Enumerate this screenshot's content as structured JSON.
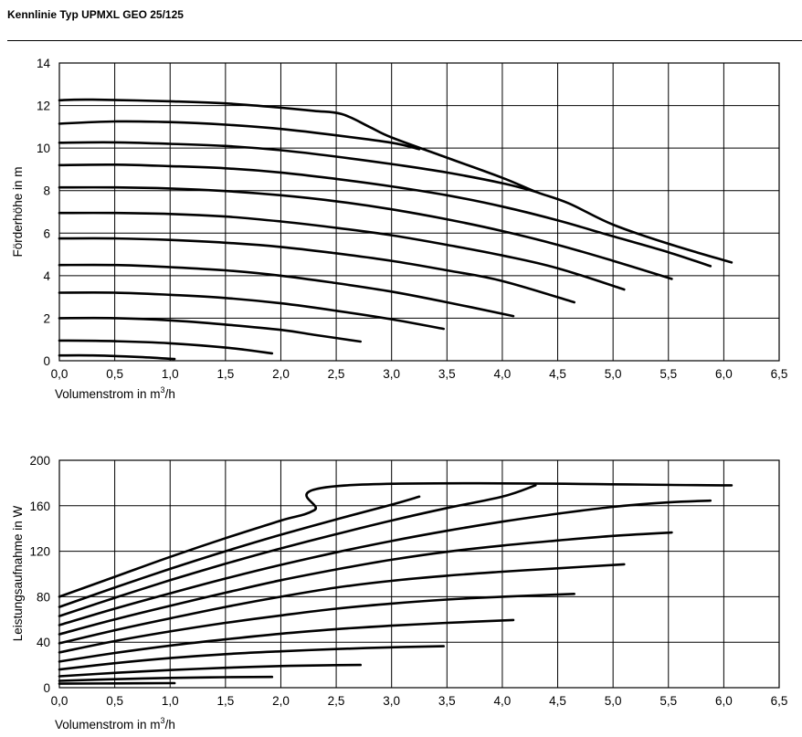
{
  "header": {
    "title": "Kennlinie Typ UPMXL GEO 25/125"
  },
  "chart_data": [
    {
      "type": "line",
      "title": "",
      "xlabel": "Volumenstrom in m³/h",
      "ylabel": "Förderhöhe in m",
      "xlim": [
        0,
        6.5
      ],
      "ylim": [
        0,
        14
      ],
      "xticks": [
        "0,0",
        "0,5",
        "1,0",
        "1,5",
        "2,0",
        "2,5",
        "3,0",
        "3,5",
        "4,0",
        "4,5",
        "5,0",
        "5,5",
        "6,0",
        "6,5"
      ],
      "yticks": [
        "0",
        "2",
        "4",
        "6",
        "8",
        "10",
        "12",
        "14"
      ],
      "grid": true,
      "series": [
        {
          "points": [
            [
              0,
              0.25
            ],
            [
              0.3,
              0.25
            ],
            [
              0.7,
              0.18
            ],
            [
              1.04,
              0.08
            ]
          ]
        },
        {
          "points": [
            [
              0,
              0.95
            ],
            [
              0.5,
              0.92
            ],
            [
              1.0,
              0.82
            ],
            [
              1.5,
              0.62
            ],
            [
              1.92,
              0.35
            ]
          ]
        },
        {
          "points": [
            [
              0,
              2.0
            ],
            [
              0.5,
              2.0
            ],
            [
              1.0,
              1.9
            ],
            [
              1.5,
              1.7
            ],
            [
              2.0,
              1.45
            ],
            [
              2.3,
              1.22
            ],
            [
              2.72,
              0.9
            ]
          ]
        },
        {
          "points": [
            [
              0,
              3.2
            ],
            [
              0.5,
              3.2
            ],
            [
              1.0,
              3.1
            ],
            [
              1.5,
              2.95
            ],
            [
              2.0,
              2.7
            ],
            [
              2.5,
              2.35
            ],
            [
              3.0,
              1.95
            ],
            [
              3.47,
              1.5
            ]
          ]
        },
        {
          "points": [
            [
              0,
              4.5
            ],
            [
              0.5,
              4.5
            ],
            [
              1.0,
              4.4
            ],
            [
              1.5,
              4.25
            ],
            [
              2.0,
              4.0
            ],
            [
              2.5,
              3.65
            ],
            [
              3.0,
              3.25
            ],
            [
              3.5,
              2.75
            ],
            [
              4.1,
              2.1
            ]
          ]
        },
        {
          "points": [
            [
              0,
              5.75
            ],
            [
              0.5,
              5.75
            ],
            [
              1.0,
              5.68
            ],
            [
              1.5,
              5.55
            ],
            [
              2.0,
              5.35
            ],
            [
              2.5,
              5.05
            ],
            [
              3.0,
              4.7
            ],
            [
              3.5,
              4.25
            ],
            [
              4.0,
              3.75
            ],
            [
              4.65,
              2.75
            ]
          ]
        },
        {
          "points": [
            [
              0,
              6.95
            ],
            [
              0.5,
              6.95
            ],
            [
              1.0,
              6.9
            ],
            [
              1.5,
              6.78
            ],
            [
              2.0,
              6.55
            ],
            [
              2.5,
              6.25
            ],
            [
              3.0,
              5.9
            ],
            [
              3.5,
              5.45
            ],
            [
              4.0,
              4.95
            ],
            [
              4.5,
              4.35
            ],
            [
              5.1,
              3.35
            ]
          ]
        },
        {
          "points": [
            [
              0,
              8.15
            ],
            [
              0.5,
              8.15
            ],
            [
              1.0,
              8.1
            ],
            [
              1.5,
              7.98
            ],
            [
              2.0,
              7.78
            ],
            [
              2.5,
              7.5
            ],
            [
              3.0,
              7.12
            ],
            [
              3.5,
              6.65
            ],
            [
              4.0,
              6.1
            ],
            [
              4.5,
              5.45
            ],
            [
              5.0,
              4.7
            ],
            [
              5.53,
              3.85
            ]
          ]
        },
        {
          "points": [
            [
              0,
              9.2
            ],
            [
              0.5,
              9.22
            ],
            [
              1.0,
              9.15
            ],
            [
              1.5,
              9.05
            ],
            [
              2.0,
              8.85
            ],
            [
              2.5,
              8.55
            ],
            [
              3.0,
              8.2
            ],
            [
              3.5,
              7.78
            ],
            [
              4.0,
              7.25
            ],
            [
              4.5,
              6.6
            ],
            [
              5.0,
              5.85
            ],
            [
              5.5,
              5.1
            ],
            [
              5.88,
              4.45
            ]
          ]
        },
        {
          "points": [
            [
              0,
              10.25
            ],
            [
              0.5,
              10.27
            ],
            [
              1.0,
              10.2
            ],
            [
              1.5,
              10.1
            ],
            [
              2.0,
              9.9
            ],
            [
              2.5,
              9.6
            ],
            [
              3.0,
              9.25
            ],
            [
              3.5,
              8.85
            ],
            [
              4.0,
              8.35
            ],
            [
              4.3,
              7.95
            ]
          ]
        },
        {
          "points": [
            [
              0,
              11.15
            ],
            [
              0.5,
              11.25
            ],
            [
              1.0,
              11.22
            ],
            [
              1.5,
              11.1
            ],
            [
              2.0,
              10.9
            ],
            [
              2.5,
              10.6
            ],
            [
              3.0,
              10.25
            ],
            [
              3.25,
              9.95
            ]
          ]
        },
        {
          "points": [
            [
              0,
              12.25
            ],
            [
              0.3,
              12.28
            ],
            [
              1.0,
              12.2
            ],
            [
              1.5,
              12.1
            ],
            [
              2.0,
              11.9
            ],
            [
              2.3,
              11.75
            ],
            [
              2.55,
              11.6
            ],
            [
              2.8,
              11.0
            ],
            [
              3.0,
              10.5
            ],
            [
              3.5,
              9.55
            ],
            [
              4.0,
              8.6
            ],
            [
              4.3,
              7.95
            ],
            [
              4.6,
              7.4
            ],
            [
              5.0,
              6.4
            ],
            [
              5.5,
              5.5
            ],
            [
              6.07,
              4.62
            ]
          ]
        }
      ]
    },
    {
      "type": "line",
      "title": "",
      "xlabel": "Volumenstrom in m³/h",
      "ylabel": "Leistungsaufnahme in W",
      "xlim": [
        0,
        6.5
      ],
      "ylim": [
        0,
        200
      ],
      "xticks": [
        "0,0",
        "0,5",
        "1,0",
        "1,5",
        "2,0",
        "2,5",
        "3,0",
        "3,5",
        "4,0",
        "4,5",
        "5,0",
        "5,5",
        "6,0",
        "6,5"
      ],
      "yticks": [
        "0",
        "40",
        "80",
        "120",
        "160",
        "200"
      ],
      "grid": true,
      "series": [
        {
          "points": [
            [
              0,
              3.5
            ],
            [
              0.5,
              3.8
            ],
            [
              1.04,
              4
            ]
          ]
        },
        {
          "points": [
            [
              0,
              6
            ],
            [
              0.5,
              7.5
            ],
            [
              1.0,
              8.6
            ],
            [
              1.5,
              9.2
            ],
            [
              1.92,
              9.5
            ]
          ]
        },
        {
          "points": [
            [
              0,
              10
            ],
            [
              0.5,
              13
            ],
            [
              1.0,
              15.5
            ],
            [
              1.5,
              17.5
            ],
            [
              2.0,
              19
            ],
            [
              2.5,
              19.8
            ],
            [
              2.72,
              20
            ]
          ]
        },
        {
          "points": [
            [
              0,
              16
            ],
            [
              0.5,
              21.5
            ],
            [
              1.0,
              26
            ],
            [
              1.5,
              29.5
            ],
            [
              2.0,
              32
            ],
            [
              2.5,
              34
            ],
            [
              3.0,
              35.5
            ],
            [
              3.47,
              36.5
            ]
          ]
        },
        {
          "points": [
            [
              0,
              23
            ],
            [
              0.5,
              30.5
            ],
            [
              1.0,
              37
            ],
            [
              1.5,
              42.5
            ],
            [
              2.0,
              47.5
            ],
            [
              2.5,
              51.5
            ],
            [
              3.0,
              54.5
            ],
            [
              3.5,
              57
            ],
            [
              4.1,
              59.5
            ]
          ]
        },
        {
          "points": [
            [
              0,
              31
            ],
            [
              0.5,
              41
            ],
            [
              1.0,
              49.5
            ],
            [
              1.5,
              57
            ],
            [
              2.0,
              63.5
            ],
            [
              2.5,
              69.5
            ],
            [
              3.0,
              74
            ],
            [
              3.5,
              77.5
            ],
            [
              4.0,
              80
            ],
            [
              4.65,
              82.5
            ]
          ]
        },
        {
          "points": [
            [
              0,
              39
            ],
            [
              0.5,
              50.5
            ],
            [
              1.0,
              61
            ],
            [
              1.5,
              71
            ],
            [
              2.0,
              80
            ],
            [
              2.5,
              88
            ],
            [
              3.0,
              94
            ],
            [
              3.5,
              98.5
            ],
            [
              4.0,
              102
            ],
            [
              4.5,
              105
            ],
            [
              5.1,
              108.5
            ]
          ]
        },
        {
          "points": [
            [
              0,
              47
            ],
            [
              0.5,
              60
            ],
            [
              1.0,
              72
            ],
            [
              1.5,
              83.5
            ],
            [
              2.0,
              94.5
            ],
            [
              2.5,
              104
            ],
            [
              3.0,
              112.5
            ],
            [
              3.5,
              119.5
            ],
            [
              4.0,
              125
            ],
            [
              4.5,
              129.5
            ],
            [
              5.0,
              133.5
            ],
            [
              5.53,
              136.5
            ]
          ]
        },
        {
          "points": [
            [
              0,
              55
            ],
            [
              0.5,
              69.5
            ],
            [
              1.0,
              83
            ],
            [
              1.5,
              96
            ],
            [
              2.0,
              108
            ],
            [
              2.5,
              119
            ],
            [
              3.0,
              129
            ],
            [
              3.5,
              138
            ],
            [
              4.0,
              146
            ],
            [
              4.5,
              153
            ],
            [
              5.0,
              159
            ],
            [
              5.5,
              163
            ],
            [
              5.88,
              164.5
            ]
          ]
        },
        {
          "points": [
            [
              0,
              63
            ],
            [
              0.5,
              79
            ],
            [
              1.0,
              94.5
            ],
            [
              1.5,
              109
            ],
            [
              2.0,
              122.5
            ],
            [
              2.5,
              135
            ],
            [
              3.0,
              147
            ],
            [
              3.5,
              158
            ],
            [
              4.0,
              168
            ],
            [
              4.3,
              178
            ]
          ]
        },
        {
          "points": [
            [
              0,
              71
            ],
            [
              0.5,
              88
            ],
            [
              1.0,
              104.5
            ],
            [
              1.5,
              120
            ],
            [
              2.0,
              134.5
            ],
            [
              2.5,
              148
            ],
            [
              3.0,
              161
            ],
            [
              3.25,
              168
            ]
          ]
        },
        {
          "points": [
            [
              0,
              80
            ],
            [
              0.5,
              97.5
            ],
            [
              1.0,
              115
            ],
            [
              1.5,
              131.5
            ],
            [
              2.0,
              147
            ],
            [
              2.3,
              156
            ],
            [
              2.6,
              178
            ],
            [
              6.07,
              178
            ]
          ]
        }
      ]
    }
  ]
}
